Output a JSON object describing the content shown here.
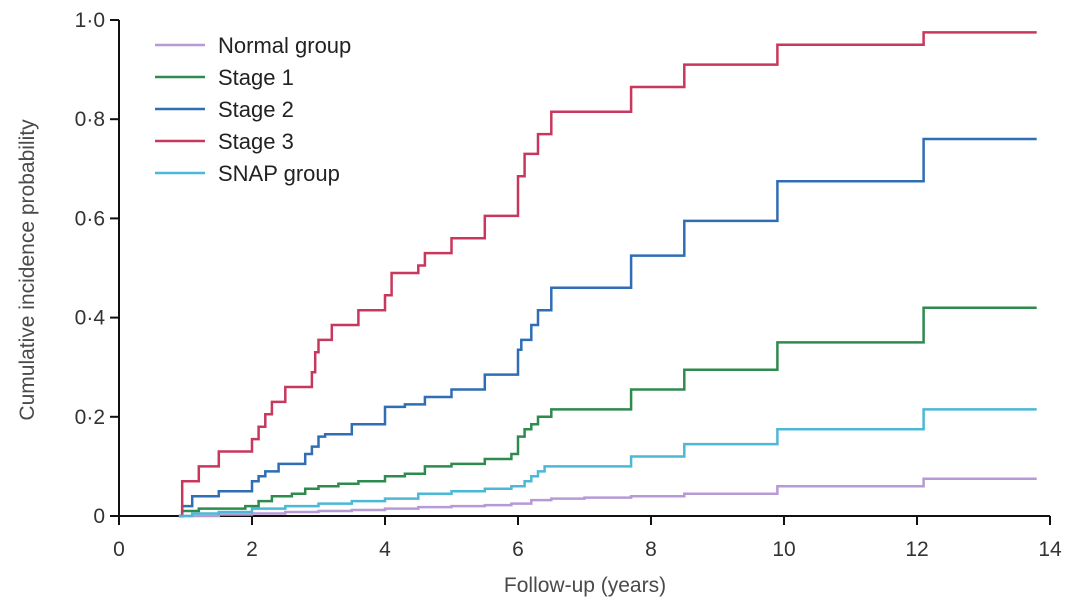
{
  "chart_data": {
    "type": "line",
    "title": "",
    "xlabel": "Follow-up (years)",
    "ylabel": "Cumulative incidence probability",
    "xlim": [
      0,
      14
    ],
    "ylim": [
      0,
      1.0
    ],
    "x_ticks": [
      {
        "value": 0,
        "label": "0"
      },
      {
        "value": 2,
        "label": "2"
      },
      {
        "value": 4,
        "label": "4"
      },
      {
        "value": 6,
        "label": "6"
      },
      {
        "value": 8,
        "label": "8"
      },
      {
        "value": 10,
        "label": "10"
      },
      {
        "value": 12,
        "label": "12"
      },
      {
        "value": 14,
        "label": "14"
      }
    ],
    "y_ticks": [
      {
        "value": 0,
        "label": "0"
      },
      {
        "value": 0.2,
        "label": "0·2"
      },
      {
        "value": 0.4,
        "label": "0·4"
      },
      {
        "value": 0.6,
        "label": "0·6"
      },
      {
        "value": 0.8,
        "label": "0·8"
      },
      {
        "value": 1.0,
        "label": "1·0"
      }
    ],
    "grid": false,
    "legend_position": "top-left",
    "step": true,
    "series": [
      {
        "name": "Normal group",
        "color": "#b69ad6",
        "points": [
          [
            0.9,
            0
          ],
          [
            1.5,
            0.003
          ],
          [
            2,
            0.005
          ],
          [
            2.5,
            0.008
          ],
          [
            3,
            0.01
          ],
          [
            3.5,
            0.012
          ],
          [
            4,
            0.015
          ],
          [
            4.5,
            0.018
          ],
          [
            5,
            0.02
          ],
          [
            5.5,
            0.022
          ],
          [
            5.9,
            0.025
          ],
          [
            6.2,
            0.032
          ],
          [
            6.5,
            0.035
          ],
          [
            7,
            0.037
          ],
          [
            7.7,
            0.04
          ],
          [
            8.5,
            0.045
          ],
          [
            9.9,
            0.06
          ],
          [
            12.1,
            0.075
          ],
          [
            13.8,
            0.075
          ]
        ]
      },
      {
        "name": "Stage 1",
        "color": "#2e8b4e",
        "points": [
          [
            0.9,
            0
          ],
          [
            0.95,
            0.01
          ],
          [
            1.2,
            0.015
          ],
          [
            1.9,
            0.02
          ],
          [
            2.1,
            0.03
          ],
          [
            2.3,
            0.04
          ],
          [
            2.6,
            0.045
          ],
          [
            2.8,
            0.055
          ],
          [
            3,
            0.06
          ],
          [
            3.3,
            0.065
          ],
          [
            3.6,
            0.07
          ],
          [
            4,
            0.08
          ],
          [
            4.3,
            0.085
          ],
          [
            4.6,
            0.1
          ],
          [
            5,
            0.105
          ],
          [
            5.5,
            0.115
          ],
          [
            5.9,
            0.125
          ],
          [
            6,
            0.16
          ],
          [
            6.1,
            0.175
          ],
          [
            6.2,
            0.185
          ],
          [
            6.3,
            0.2
          ],
          [
            6.5,
            0.215
          ],
          [
            7.7,
            0.255
          ],
          [
            8.5,
            0.295
          ],
          [
            9.9,
            0.35
          ],
          [
            12.1,
            0.42
          ],
          [
            13.8,
            0.42
          ]
        ]
      },
      {
        "name": "Stage 2",
        "color": "#2f6db5",
        "points": [
          [
            0.9,
            0
          ],
          [
            0.95,
            0.02
          ],
          [
            1.1,
            0.04
          ],
          [
            1.5,
            0.05
          ],
          [
            2,
            0.07
          ],
          [
            2.1,
            0.08
          ],
          [
            2.2,
            0.09
          ],
          [
            2.4,
            0.105
          ],
          [
            2.8,
            0.125
          ],
          [
            2.9,
            0.14
          ],
          [
            3,
            0.16
          ],
          [
            3.1,
            0.165
          ],
          [
            3.5,
            0.185
          ],
          [
            4,
            0.22
          ],
          [
            4.3,
            0.225
          ],
          [
            4.6,
            0.24
          ],
          [
            5,
            0.255
          ],
          [
            5.5,
            0.285
          ],
          [
            6,
            0.335
          ],
          [
            6.05,
            0.355
          ],
          [
            6.2,
            0.385
          ],
          [
            6.3,
            0.415
          ],
          [
            6.5,
            0.46
          ],
          [
            7.7,
            0.525
          ],
          [
            8.5,
            0.595
          ],
          [
            9.9,
            0.675
          ],
          [
            12.1,
            0.76
          ],
          [
            13.8,
            0.76
          ]
        ]
      },
      {
        "name": "Stage 3",
        "color": "#c8375c",
        "points": [
          [
            0.9,
            0
          ],
          [
            0.95,
            0.07
          ],
          [
            1.2,
            0.1
          ],
          [
            1.5,
            0.13
          ],
          [
            2,
            0.155
          ],
          [
            2.1,
            0.18
          ],
          [
            2.2,
            0.205
          ],
          [
            2.3,
            0.23
          ],
          [
            2.5,
            0.26
          ],
          [
            2.9,
            0.29
          ],
          [
            2.95,
            0.33
          ],
          [
            3,
            0.355
          ],
          [
            3.2,
            0.385
          ],
          [
            3.6,
            0.415
          ],
          [
            4,
            0.445
          ],
          [
            4.1,
            0.49
          ],
          [
            4.5,
            0.505
          ],
          [
            4.6,
            0.53
          ],
          [
            5,
            0.56
          ],
          [
            5.5,
            0.605
          ],
          [
            6,
            0.685
          ],
          [
            6.1,
            0.73
          ],
          [
            6.3,
            0.77
          ],
          [
            6.5,
            0.815
          ],
          [
            7.7,
            0.865
          ],
          [
            8.5,
            0.91
          ],
          [
            9.9,
            0.95
          ],
          [
            12.1,
            0.975
          ],
          [
            13.8,
            0.975
          ]
        ]
      },
      {
        "name": "SNAP group",
        "color": "#4bb8d6",
        "points": [
          [
            0.9,
            0
          ],
          [
            1.1,
            0.005
          ],
          [
            1.5,
            0.008
          ],
          [
            2,
            0.015
          ],
          [
            2.5,
            0.02
          ],
          [
            3,
            0.025
          ],
          [
            3.5,
            0.03
          ],
          [
            4,
            0.035
          ],
          [
            4.5,
            0.045
          ],
          [
            5,
            0.05
          ],
          [
            5.5,
            0.055
          ],
          [
            5.9,
            0.06
          ],
          [
            6.1,
            0.07
          ],
          [
            6.2,
            0.08
          ],
          [
            6.3,
            0.09
          ],
          [
            6.4,
            0.1
          ],
          [
            7.7,
            0.12
          ],
          [
            8.5,
            0.145
          ],
          [
            9.9,
            0.175
          ],
          [
            12.1,
            0.215
          ],
          [
            13.8,
            0.215
          ]
        ]
      }
    ]
  }
}
